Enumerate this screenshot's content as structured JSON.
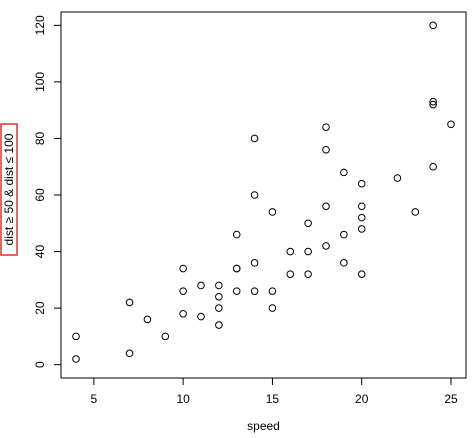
{
  "chart_data": {
    "type": "scatter",
    "xlabel": "speed",
    "ylabel": "dist ≥ 50 & dist ≤ 100",
    "ylabel_highlight_color": "#e0352b",
    "xlim": [
      3.16,
      25.84
    ],
    "ylim": [
      -4.72,
      124.72
    ],
    "x_ticks": [
      5,
      10,
      15,
      20,
      25
    ],
    "y_ticks": [
      0,
      20,
      40,
      60,
      80,
      100,
      120
    ],
    "grid": false,
    "legend": "none",
    "marker": "open-circle",
    "points": [
      {
        "x": 4,
        "y": 2
      },
      {
        "x": 4,
        "y": 10
      },
      {
        "x": 7,
        "y": 4
      },
      {
        "x": 7,
        "y": 22
      },
      {
        "x": 8,
        "y": 16
      },
      {
        "x": 9,
        "y": 10
      },
      {
        "x": 10,
        "y": 18
      },
      {
        "x": 10,
        "y": 26
      },
      {
        "x": 10,
        "y": 34
      },
      {
        "x": 11,
        "y": 17
      },
      {
        "x": 11,
        "y": 28
      },
      {
        "x": 12,
        "y": 14
      },
      {
        "x": 12,
        "y": 20
      },
      {
        "x": 12,
        "y": 24
      },
      {
        "x": 12,
        "y": 28
      },
      {
        "x": 13,
        "y": 26
      },
      {
        "x": 13,
        "y": 34
      },
      {
        "x": 13,
        "y": 34
      },
      {
        "x": 13,
        "y": 46
      },
      {
        "x": 14,
        "y": 26
      },
      {
        "x": 14,
        "y": 36
      },
      {
        "x": 14,
        "y": 60
      },
      {
        "x": 14,
        "y": 80
      },
      {
        "x": 15,
        "y": 20
      },
      {
        "x": 15,
        "y": 26
      },
      {
        "x": 15,
        "y": 54
      },
      {
        "x": 16,
        "y": 32
      },
      {
        "x": 16,
        "y": 40
      },
      {
        "x": 17,
        "y": 32
      },
      {
        "x": 17,
        "y": 40
      },
      {
        "x": 17,
        "y": 50
      },
      {
        "x": 18,
        "y": 42
      },
      {
        "x": 18,
        "y": 56
      },
      {
        "x": 18,
        "y": 76
      },
      {
        "x": 18,
        "y": 84
      },
      {
        "x": 19,
        "y": 36
      },
      {
        "x": 19,
        "y": 46
      },
      {
        "x": 19,
        "y": 68
      },
      {
        "x": 20,
        "y": 32
      },
      {
        "x": 20,
        "y": 48
      },
      {
        "x": 20,
        "y": 52
      },
      {
        "x": 20,
        "y": 56
      },
      {
        "x": 20,
        "y": 64
      },
      {
        "x": 22,
        "y": 66
      },
      {
        "x": 23,
        "y": 54
      },
      {
        "x": 24,
        "y": 70
      },
      {
        "x": 24,
        "y": 92
      },
      {
        "x": 24,
        "y": 93
      },
      {
        "x": 24,
        "y": 120
      },
      {
        "x": 25,
        "y": 85
      }
    ]
  }
}
